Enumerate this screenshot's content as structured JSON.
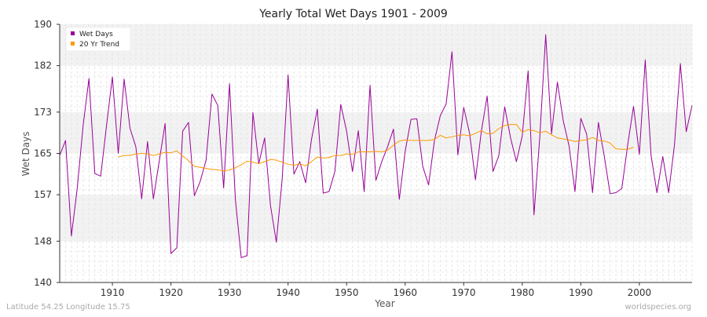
{
  "chart_data": {
    "type": "line",
    "title": "Yearly Total Wet Days 1901 - 2009",
    "xlabel": "Year",
    "ylabel": "Wet Days",
    "xlim": [
      1901,
      2009
    ],
    "ylim": [
      140,
      190
    ],
    "y_ticks": [
      140,
      148,
      157,
      165,
      173,
      182,
      190
    ],
    "x_ticks": [
      1910,
      1920,
      1930,
      1940,
      1950,
      1960,
      1970,
      1980,
      1990,
      2000
    ],
    "grid": true,
    "legend_position": "top-left",
    "series": [
      {
        "name": "Wet Days",
        "color": "#990099",
        "x": [
          1901,
          1902,
          1903,
          1904,
          1905,
          1906,
          1907,
          1908,
          1909,
          1910,
          1911,
          1912,
          1913,
          1914,
          1915,
          1916,
          1917,
          1918,
          1919,
          1920,
          1921,
          1922,
          1923,
          1924,
          1925,
          1926,
          1927,
          1928,
          1929,
          1930,
          1931,
          1932,
          1933,
          1934,
          1935,
          1936,
          1937,
          1938,
          1939,
          1940,
          1941,
          1942,
          1943,
          1944,
          1945,
          1946,
          1947,
          1948,
          1949,
          1950,
          1951,
          1952,
          1953,
          1954,
          1955,
          1956,
          1957,
          1958,
          1959,
          1960,
          1961,
          1962,
          1963,
          1964,
          1965,
          1966,
          1967,
          1968,
          1969,
          1970,
          1971,
          1972,
          1973,
          1974,
          1975,
          1976,
          1977,
          1978,
          1979,
          1980,
          1981,
          1982,
          1983,
          1984,
          1985,
          1986,
          1987,
          1988,
          1989,
          1990,
          1991,
          1992,
          1993,
          1994,
          1995,
          1996,
          1997,
          1998,
          1999,
          2000,
          2001,
          2002,
          2003,
          2004,
          2005,
          2006,
          2007,
          2008,
          2009
        ],
        "values": [
          164.6,
          167.5,
          149.0,
          158.3,
          170.4,
          179.5,
          161.1,
          160.6,
          170.4,
          179.8,
          165.0,
          179.4,
          169.9,
          166.3,
          156.2,
          167.3,
          156.2,
          163.5,
          170.8,
          145.6,
          146.7,
          169.3,
          171.0,
          156.8,
          159.6,
          163.7,
          176.5,
          174.3,
          158.3,
          178.5,
          156.1,
          144.8,
          145.2,
          172.9,
          163.0,
          168.0,
          154.9,
          147.8,
          160.1,
          180.2,
          161.0,
          163.4,
          159.3,
          167.7,
          173.6,
          157.3,
          157.6,
          161.5,
          174.5,
          169.3,
          161.5,
          169.4,
          157.6,
          178.2,
          159.8,
          163.4,
          166.3,
          169.7,
          156.1,
          165.4,
          171.6,
          171.7,
          162.5,
          158.9,
          167.5,
          172.3,
          174.6,
          184.7,
          164.7,
          173.9,
          168.9,
          159.9,
          169.2,
          176.1,
          161.5,
          164.6,
          174.0,
          168.0,
          163.4,
          168.4,
          181.0,
          153.1,
          168.3,
          188.0,
          168.8,
          178.8,
          171.3,
          166.4,
          157.6,
          171.8,
          168.7,
          157.4,
          171.0,
          164.5,
          157.2,
          157.4,
          158.2,
          166.6,
          174.1,
          164.8,
          183.1,
          164.6,
          157.4,
          164.4,
          157.4,
          166.7,
          182.4,
          169.2,
          174.3
        ]
      },
      {
        "name": "20 Yr Trend",
        "color": "#ff9900",
        "x": [
          1911,
          1912,
          1913,
          1914,
          1915,
          1916,
          1917,
          1918,
          1919,
          1920,
          1921,
          1922,
          1923,
          1924,
          1925,
          1926,
          1927,
          1928,
          1929,
          1930,
          1931,
          1932,
          1933,
          1934,
          1935,
          1936,
          1937,
          1938,
          1939,
          1940,
          1941,
          1942,
          1943,
          1944,
          1945,
          1946,
          1947,
          1948,
          1949,
          1950,
          1951,
          1952,
          1953,
          1954,
          1955,
          1956,
          1957,
          1958,
          1959,
          1960,
          1961,
          1962,
          1963,
          1964,
          1965,
          1966,
          1967,
          1968,
          1969,
          1970,
          1971,
          1972,
          1973,
          1974,
          1975,
          1976,
          1977,
          1978,
          1979,
          1980,
          1981,
          1982,
          1983,
          1984,
          1985,
          1986,
          1987,
          1988,
          1989,
          1990,
          1991,
          1992,
          1993,
          1994,
          1995,
          1996,
          1997,
          1998,
          1999
        ],
        "values": [
          164.3,
          164.6,
          164.6,
          164.9,
          165.0,
          164.9,
          164.6,
          164.9,
          165.2,
          165.1,
          165.5,
          164.5,
          163.6,
          162.5,
          162.3,
          162.1,
          161.9,
          161.8,
          161.6,
          161.8,
          162.2,
          162.8,
          163.5,
          163.3,
          163.0,
          163.4,
          163.8,
          163.7,
          163.3,
          162.9,
          162.7,
          163.0,
          162.6,
          163.4,
          164.3,
          164.1,
          164.2,
          164.6,
          164.6,
          164.9,
          164.8,
          165.3,
          165.3,
          165.3,
          165.4,
          165.3,
          165.6,
          166.6,
          167.4,
          167.6,
          167.5,
          167.5,
          167.5,
          167.5,
          167.7,
          168.5,
          168.0,
          168.2,
          168.5,
          168.6,
          168.4,
          168.9,
          169.4,
          168.8,
          168.9,
          169.8,
          170.4,
          170.6,
          170.6,
          169.1,
          169.6,
          169.4,
          169.0,
          169.3,
          168.6,
          168.0,
          167.8,
          167.6,
          167.3,
          167.5,
          167.6,
          168.1,
          167.5,
          167.4,
          167.0,
          165.9,
          165.8,
          165.8,
          166.2
        ]
      }
    ]
  },
  "footer": {
    "location": "Latitude 54.25 Longitude 15.75",
    "source": "worldspecies.org"
  }
}
